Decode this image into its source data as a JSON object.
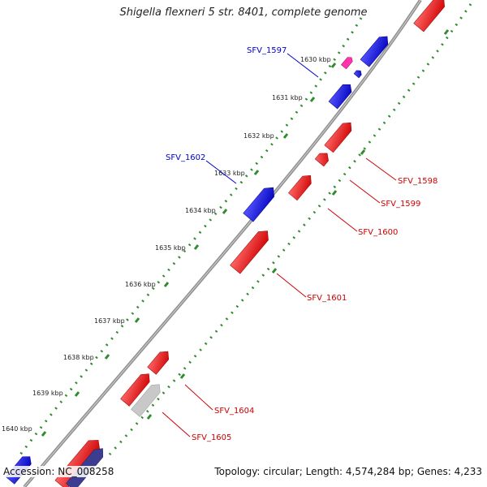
{
  "title": "Shigella flexneri 5 str. 8401, complete genome",
  "footer": {
    "accession_label": "Accession:",
    "accession": "NC_008258",
    "topology_label": "Topology:",
    "topology": "circular",
    "length_label": "Length:",
    "length": "4,574,284 bp",
    "genes_label": "Genes:",
    "genes": "4,233"
  },
  "scale": {
    "unit": "kbp",
    "ticks": [
      "1630 kbp",
      "1631 kbp",
      "1632 kbp",
      "1633 kbp",
      "1634 kbp",
      "1635 kbp",
      "1636 kbp",
      "1637 kbp",
      "1638 kbp",
      "1639 kbp",
      "1640 kbp"
    ]
  },
  "colors": {
    "forward_gene": "#ff0000",
    "reverse_gene": "#0000ff",
    "forward_label": "#cc0000",
    "reverse_label": "#0000cc",
    "pseudo_gene": "#c8c8c8",
    "dark_gene": "#3c3c90",
    "pink_gene": "#ff33aa",
    "backbone": "#808080",
    "ruler_dots": "#2e8b2e"
  },
  "gene_labels": {
    "forward": [
      "SFV_1598",
      "SFV_1599",
      "SFV_1600",
      "SFV_1601",
      "SFV_1604",
      "SFV_1605"
    ],
    "reverse": [
      "SFV_1597",
      "SFV_1602"
    ]
  }
}
